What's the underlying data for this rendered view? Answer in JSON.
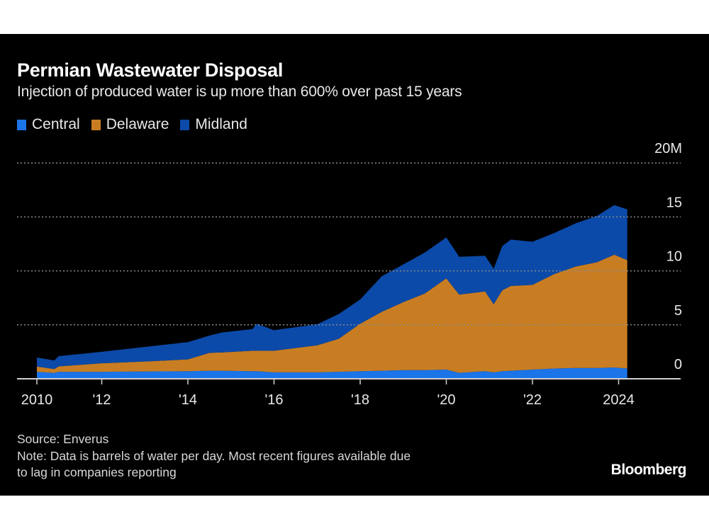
{
  "header": {
    "title": "Permian Wastewater Disposal",
    "subtitle": "Injection of produced water is up more than 600% over past 15 years"
  },
  "footer": {
    "source": "Source: Enverus",
    "note_line1": "Note: Data is barrels of water per day. Most recent figures available due",
    "note_line2": "to lag in companies reporting",
    "logo": "Bloomberg"
  },
  "chart_data": {
    "type": "area",
    "stacked": true,
    "title": "Permian Wastewater Disposal",
    "subtitle": "Injection of produced water is up more than 600% over past 15 years",
    "ylim": [
      0,
      20
    ],
    "y_unit": "M",
    "y_ticks": [
      {
        "value": 0,
        "label": "0"
      },
      {
        "value": 5,
        "label": "5"
      },
      {
        "value": 10,
        "label": "10"
      },
      {
        "value": 15,
        "label": "15"
      },
      {
        "value": 20,
        "label": "20M"
      }
    ],
    "x_ticks": [
      {
        "value": 2010.5,
        "label": "2010"
      },
      {
        "value": 2012,
        "label": "'12"
      },
      {
        "value": 2014,
        "label": "'14"
      },
      {
        "value": 2016,
        "label": "'16"
      },
      {
        "value": 2018,
        "label": "'18"
      },
      {
        "value": 2020,
        "label": "'20"
      },
      {
        "value": 2022,
        "label": "'22"
      },
      {
        "value": 2024,
        "label": "2024"
      }
    ],
    "xlim": [
      2010.5,
      2025.5
    ],
    "grid": true,
    "legend": "top-left",
    "x": [
      2010.5,
      2010.9,
      2011.0,
      2012,
      2013,
      2014,
      2014.5,
      2014.8,
      2015.5,
      2015.6,
      2016,
      2017,
      2017.5,
      2018,
      2018.5,
      2019,
      2019.5,
      2020,
      2020.3,
      2020.9,
      2021.1,
      2021.3,
      2021.5,
      2022,
      2022.5,
      2023,
      2023.5,
      2023.9,
      2024.2
    ],
    "series": [
      {
        "name": "Central",
        "color": "#1b74e8",
        "values": [
          0.65,
          0.55,
          0.65,
          0.65,
          0.68,
          0.7,
          0.75,
          0.75,
          0.7,
          0.7,
          0.6,
          0.6,
          0.65,
          0.7,
          0.75,
          0.8,
          0.8,
          0.85,
          0.55,
          0.7,
          0.6,
          0.7,
          0.75,
          0.85,
          0.95,
          1.0,
          1.0,
          1.05,
          0.95
        ]
      },
      {
        "name": "Delaware",
        "color": "#c97d22",
        "values": [
          0.48,
          0.35,
          0.5,
          0.79,
          0.92,
          1.1,
          1.65,
          1.7,
          1.9,
          1.9,
          2.0,
          2.5,
          3.05,
          4.4,
          5.45,
          6.3,
          7.1,
          8.45,
          7.25,
          7.4,
          6.3,
          7.5,
          7.85,
          7.85,
          8.75,
          9.4,
          9.8,
          10.45,
          10.05
        ]
      },
      {
        "name": "Midland",
        "color": "#0b4aa8",
        "values": [
          0.84,
          0.8,
          0.95,
          1.06,
          1.35,
          1.6,
          1.6,
          1.85,
          2.0,
          2.5,
          1.9,
          1.95,
          2.3,
          2.25,
          3.3,
          3.5,
          3.8,
          3.8,
          3.5,
          3.3,
          3.3,
          4.1,
          4.3,
          4.0,
          3.8,
          4.0,
          4.3,
          4.6,
          4.7
        ]
      }
    ]
  }
}
